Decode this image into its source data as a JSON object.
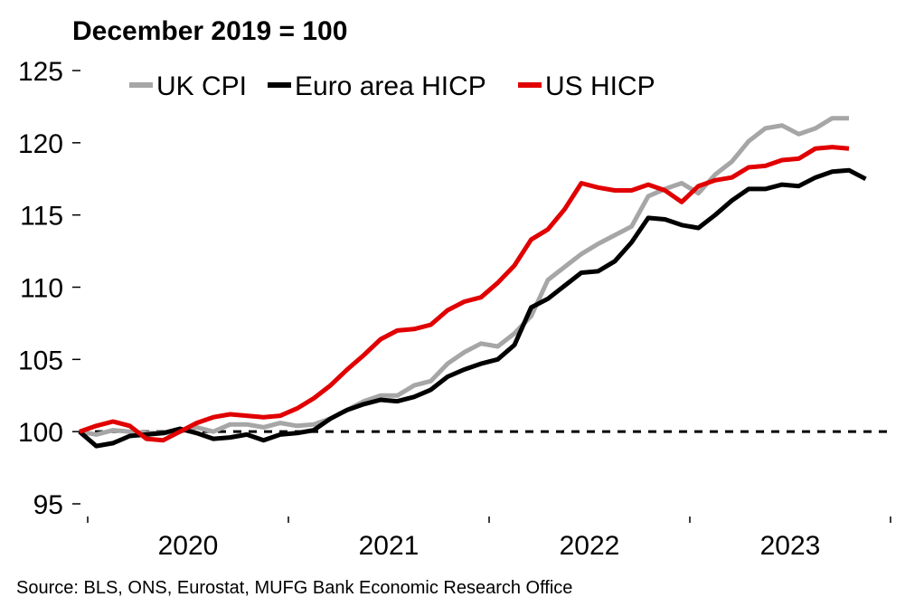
{
  "chart_data": {
    "type": "line",
    "title": "December 2019 = 100",
    "source": "Source: BLS, ONS, Eurostat, MUFG Bank Economic Research Office",
    "ylim": [
      95,
      125
    ],
    "yticks": [
      95,
      100,
      105,
      110,
      115,
      120,
      125
    ],
    "ytick_labels": [
      "95",
      "100",
      "105",
      "110",
      "115",
      "120",
      "125"
    ],
    "year_labels": [
      "2020",
      "2021",
      "2022",
      "2023"
    ],
    "x_start": "2019-12",
    "reference_line": 100,
    "grid": false,
    "legend_position": "top",
    "series": [
      {
        "name": "UK CPI",
        "color": "#a6a6a6",
        "values": [
          100,
          99.8,
          100.1,
          100.0,
          99.9,
          99.9,
          100.0,
          100.3,
          100.0,
          100.5,
          100.5,
          100.3,
          100.6,
          100.4,
          100.5,
          100.9,
          101.5,
          102.1,
          102.5,
          102.5,
          103.2,
          103.5,
          104.7,
          105.5,
          106.1,
          105.9,
          106.8,
          108.0,
          110.5,
          111.4,
          112.3,
          113.0,
          113.6,
          114.2,
          116.3,
          116.8,
          117.2,
          116.5,
          117.8,
          118.7,
          120.1,
          121.0,
          121.2,
          120.6,
          121.0,
          121.7,
          121.7
        ],
        "values_continue": []
      },
      {
        "name": "Euro area HICP",
        "color": "#000000",
        "values": [
          100,
          99.0,
          99.2,
          99.7,
          99.8,
          99.9,
          100.2,
          99.9,
          99.5,
          99.6,
          99.8,
          99.4,
          99.8,
          99.9,
          100.1,
          100.9,
          101.5,
          101.9,
          102.2,
          102.1,
          102.4,
          102.9,
          103.8,
          104.3,
          104.7,
          105.0,
          106.0,
          108.6,
          109.2,
          110.1,
          111.0,
          111.1,
          111.8,
          113.1,
          114.8,
          114.7,
          114.3,
          114.1,
          115.0,
          116.0,
          116.8,
          116.8,
          117.1,
          117.0,
          117.6,
          118.0,
          118.1,
          117.5
        ]
      },
      {
        "name": "US HICP",
        "color": "#e10000",
        "values": [
          100,
          100.4,
          100.7,
          100.4,
          99.5,
          99.4,
          100.0,
          100.6,
          101.0,
          101.2,
          101.1,
          101.0,
          101.1,
          101.6,
          102.3,
          103.2,
          104.3,
          105.3,
          106.4,
          107.0,
          107.1,
          107.4,
          108.4,
          109.0,
          109.3,
          110.3,
          111.5,
          113.3,
          114.0,
          115.4,
          117.2,
          116.9,
          116.7,
          116.7,
          117.1,
          116.7,
          115.9,
          117.0,
          117.4,
          117.6,
          118.3,
          118.4,
          118.8,
          118.9,
          119.6,
          119.7,
          119.6
        ]
      }
    ]
  }
}
